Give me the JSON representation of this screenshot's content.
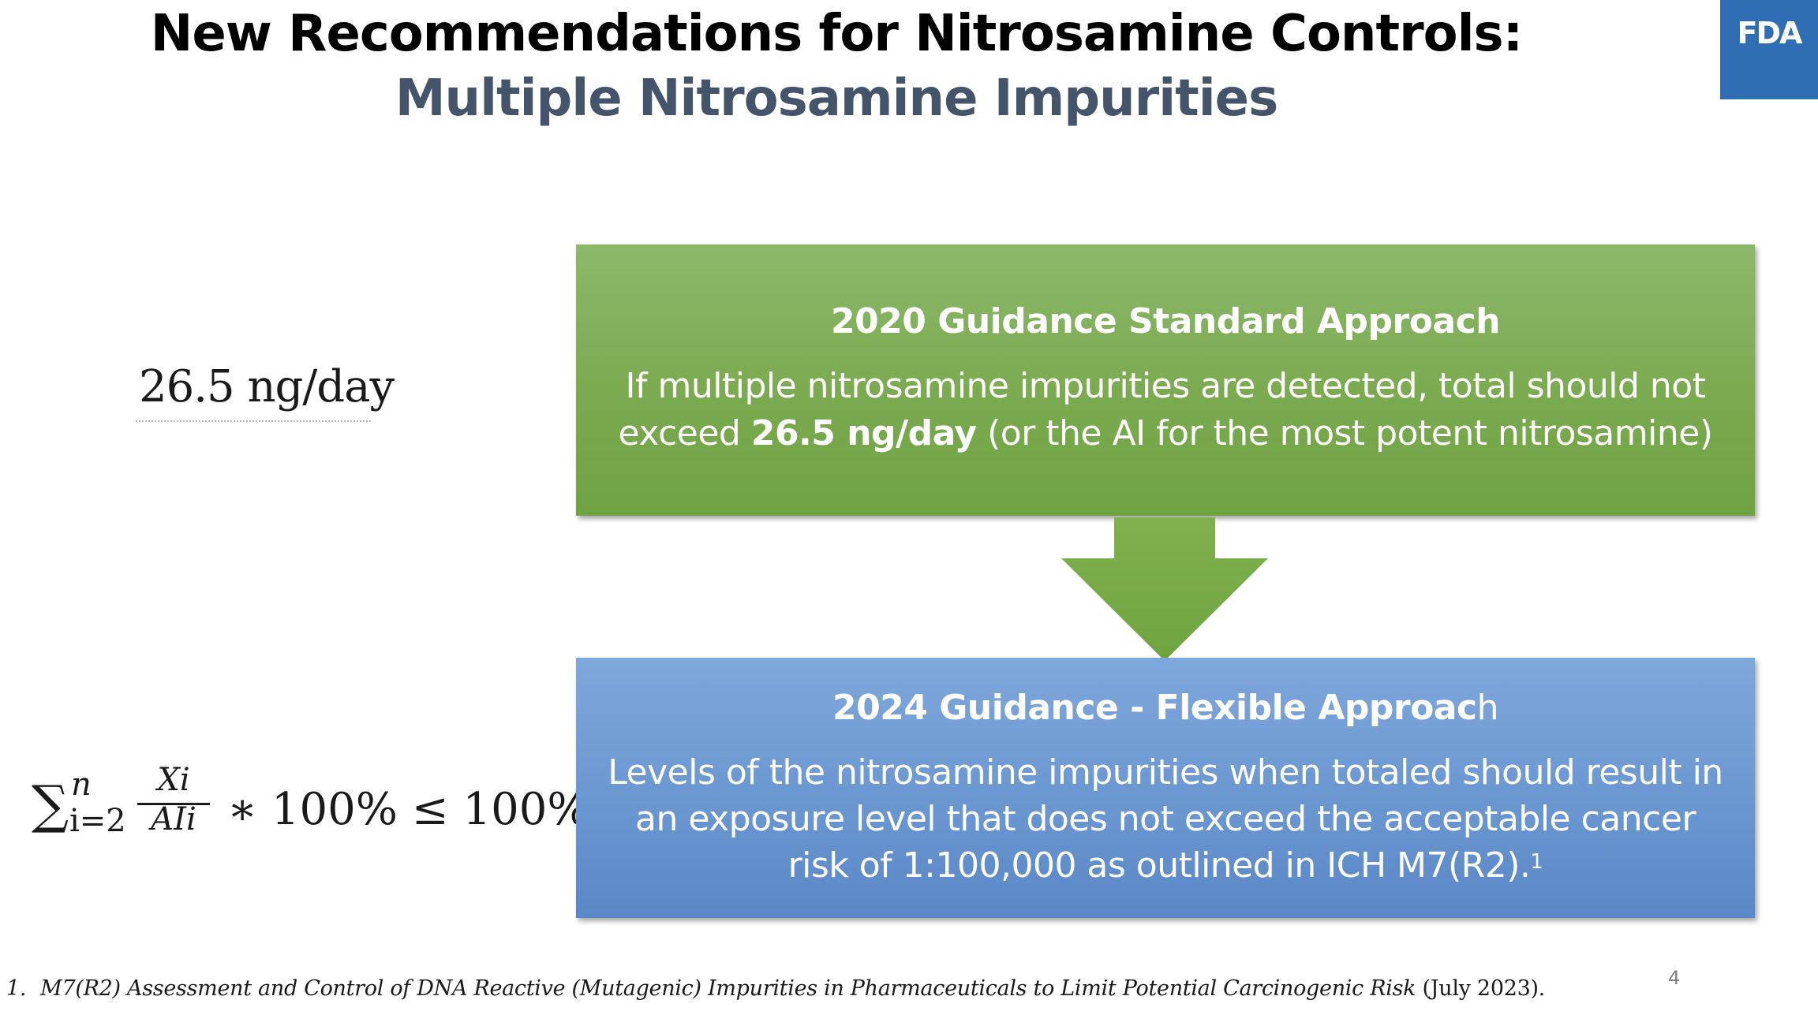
{
  "slide": {
    "title_line1": "New Recommendations for Nitrosamine Controls:",
    "title_line2": "Multiple Nitrosamine Impurities",
    "logo_text": "FDA",
    "page_number": "4"
  },
  "left": {
    "limit_value": "26.5 ng/day",
    "formula": {
      "sigma": "∑",
      "upper_limit": "n",
      "lower_limit": "i=2",
      "numerator": "Xi",
      "denominator": "AIi",
      "tail": "∗ 100%  ≤ 100%"
    }
  },
  "box_2020": {
    "heading": "2020 Guidance Standard Approach",
    "body_part1": "If multiple nitrosamine impurities are detected, total should not exceed ",
    "body_bold": "26.5 ng/day",
    "body_part2": " (or the AI for the most potent nitrosamine)"
  },
  "box_2024": {
    "heading_bold": "2024 Guidance - Flexible Approac",
    "heading_rest": "h",
    "body": "Levels of the nitrosamine impurities when totaled should result in an exposure level that does not exceed the acceptable cancer risk of 1:100,000 as outlined in ICH M7(R2).",
    "footnote_ref": "1"
  },
  "footnote": {
    "number": "1.",
    "title": "M7(R2) Assessment and Control of DNA Reactive (Mutagenic) Impurities in Pharmaceuticals to Limit Potential Carcinogenic Risk",
    "date": " (July 2023)."
  },
  "colors": {
    "title_primary": "#000000",
    "title_secondary": "#44546A",
    "fda_blue": "#2F6DB5",
    "green_box": "#7BAA50",
    "blue_box": "#6B97D1",
    "arrow_green": "#78AC48"
  }
}
